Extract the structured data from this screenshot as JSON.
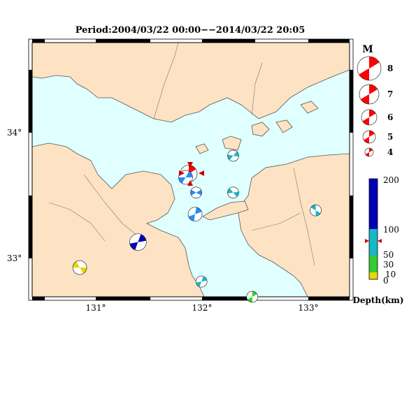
{
  "title": "Period:2004/03/22 00:00−−2014/03/22 20:05",
  "axes": {
    "lon_ticks": [
      "131°",
      "132°",
      "133°"
    ],
    "lat_ticks": [
      "34°",
      "33°"
    ]
  },
  "colors": {
    "sea": "#e0ffff",
    "land": "#fde3c3",
    "coast": "#555555",
    "mechanism_red": "#ff0000",
    "depth_scale": [
      "#e6d800",
      "#33cc33",
      "#18b8c8",
      "#0000b4"
    ]
  },
  "magnitude_legend": {
    "title": "M",
    "labels": [
      "8",
      "7",
      "6",
      "5",
      "4"
    ]
  },
  "depth_legend": {
    "title": "Depth(km)",
    "labels": [
      "200",
      "100",
      "50",
      "30",
      "10",
      "0"
    ]
  },
  "events": [
    {
      "id": "current-event",
      "lon": 131.88,
      "lat": 33.67,
      "color": "#ff0000",
      "mag_rank": "large",
      "rotation": 0
    },
    {
      "id": "ev-west-kyushu",
      "lon": 130.85,
      "lat": 32.93,
      "color": "#e6d800",
      "mag_rank": "medium",
      "rotation": 90
    },
    {
      "id": "ev-oita-deep",
      "lon": 131.4,
      "lat": 33.13,
      "color": "#0000b4",
      "mag_rank": "large",
      "rotation": 20
    },
    {
      "id": "ev-iyonada-1",
      "lon": 131.85,
      "lat": 33.64,
      "color": "#1e90ff",
      "mag_rank": "medium",
      "rotation": 30
    },
    {
      "id": "ev-iyonada-2",
      "lon": 131.95,
      "lat": 33.52,
      "color": "#1e90ff",
      "mag_rank": "small",
      "rotation": 60
    },
    {
      "id": "ev-iyonada-3",
      "lon": 131.94,
      "lat": 33.35,
      "color": "#1e90ff",
      "mag_rank": "medium",
      "rotation": 10
    },
    {
      "id": "ev-ehime-1",
      "lon": 132.3,
      "lat": 33.81,
      "color": "#18b8c8",
      "mag_rank": "small",
      "rotation": 40
    },
    {
      "id": "ev-ehime-2",
      "lon": 132.3,
      "lat": 33.52,
      "color": "#18b8c8",
      "mag_rank": "small",
      "rotation": 80
    },
    {
      "id": "ev-shikoku",
      "lon": 133.08,
      "lat": 33.38,
      "color": "#18b8c8",
      "mag_rank": "small",
      "rotation": 120
    },
    {
      "id": "ev-bungo",
      "lon": 132.0,
      "lat": 32.82,
      "color": "#18b8c8",
      "mag_rank": "small",
      "rotation": 200
    },
    {
      "id": "ev-south-edge",
      "lon": 132.48,
      "lat": 32.7,
      "color": "#33cc33",
      "mag_rank": "small",
      "rotation": 0
    }
  ]
}
